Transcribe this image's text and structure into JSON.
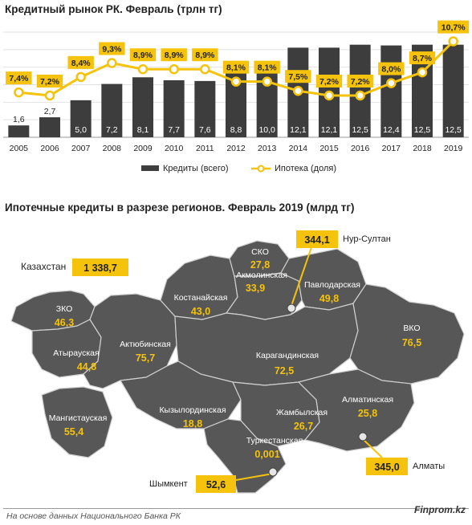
{
  "chart_data": {
    "type": "bar",
    "title": "Кредитный рынок РК. Февраль (трлн тг)",
    "categories": [
      "2005",
      "2006",
      "2007",
      "2008",
      "2009",
      "2010",
      "2011",
      "2012",
      "2013",
      "2014",
      "2015",
      "2016",
      "2017",
      "2018",
      "2019"
    ],
    "series": [
      {
        "name": "Кредиты (всего)",
        "type": "bar",
        "values": [
          1.6,
          2.7,
          5.0,
          7.2,
          8.1,
          7.7,
          7.6,
          8.8,
          10.0,
          12.1,
          12.1,
          12.5,
          12.4,
          12.5,
          12.5
        ],
        "labels": [
          "1,6",
          "2,7",
          "5,0",
          "7,2",
          "8,1",
          "7,7",
          "7,6",
          "8,8",
          "10,0",
          "12,1",
          "12,1",
          "12,5",
          "12,4",
          "12,5",
          "12,5"
        ]
      },
      {
        "name": "Ипотека (доля)",
        "type": "line",
        "values": [
          7.4,
          7.2,
          8.4,
          9.3,
          8.9,
          8.9,
          8.9,
          8.1,
          8.1,
          7.5,
          7.2,
          7.2,
          8.0,
          8.7,
          10.7
        ],
        "labels": [
          "7,4%",
          "7,2%",
          "8,4%",
          "9,3%",
          "8,9%",
          "8,9%",
          "8,9%",
          "8,1%",
          "8,1%",
          "7,5%",
          "7,2%",
          "7,2%",
          "8,0%",
          "8,7%",
          "10,7%"
        ]
      }
    ],
    "colors": {
      "bar": "#3d3d3d",
      "line": "#f5c20c",
      "label_box": "#f5c20c"
    }
  },
  "map": {
    "title": "Ипотечные кредиты в разрезе регионов. Февраль 2019 (млрд тг)",
    "total": {
      "label": "Казахстан",
      "value": "1 338,7"
    },
    "regions": [
      {
        "name": "СКО",
        "value": "27,8"
      },
      {
        "name": "Акмолинская",
        "value": "33,9"
      },
      {
        "name": "Павлодарская",
        "value": "49,8"
      },
      {
        "name": "Костанайская",
        "value": "43,0"
      },
      {
        "name": "ЗКО",
        "value": "46,3"
      },
      {
        "name": "Актюбинская",
        "value": "75,7"
      },
      {
        "name": "Атырауская",
        "value": "44,8"
      },
      {
        "name": "Карагандинская",
        "value": "72,5"
      },
      {
        "name": "ВКО",
        "value": "76,5"
      },
      {
        "name": "Мангистауская",
        "value": "55,4"
      },
      {
        "name": "Кызылординская",
        "value": "18,8"
      },
      {
        "name": "Жамбылская",
        "value": "26,7"
      },
      {
        "name": "Алматинская",
        "value": "25,8"
      },
      {
        "name": "Туркестанская",
        "value": "0,001"
      }
    ],
    "cities": [
      {
        "name": "Нур-Султан",
        "value": "344,1"
      },
      {
        "name": "Алматы",
        "value": "345,0"
      },
      {
        "name": "Шымкент",
        "value": "52,6"
      }
    ],
    "colors": {
      "region": "#575757",
      "border": "#d0d0d0",
      "value": "#f5c20c",
      "name": "#ffffff"
    }
  },
  "footer": {
    "source": "На основе данных Национального Банка РК",
    "brand": "Finprom.kz"
  }
}
